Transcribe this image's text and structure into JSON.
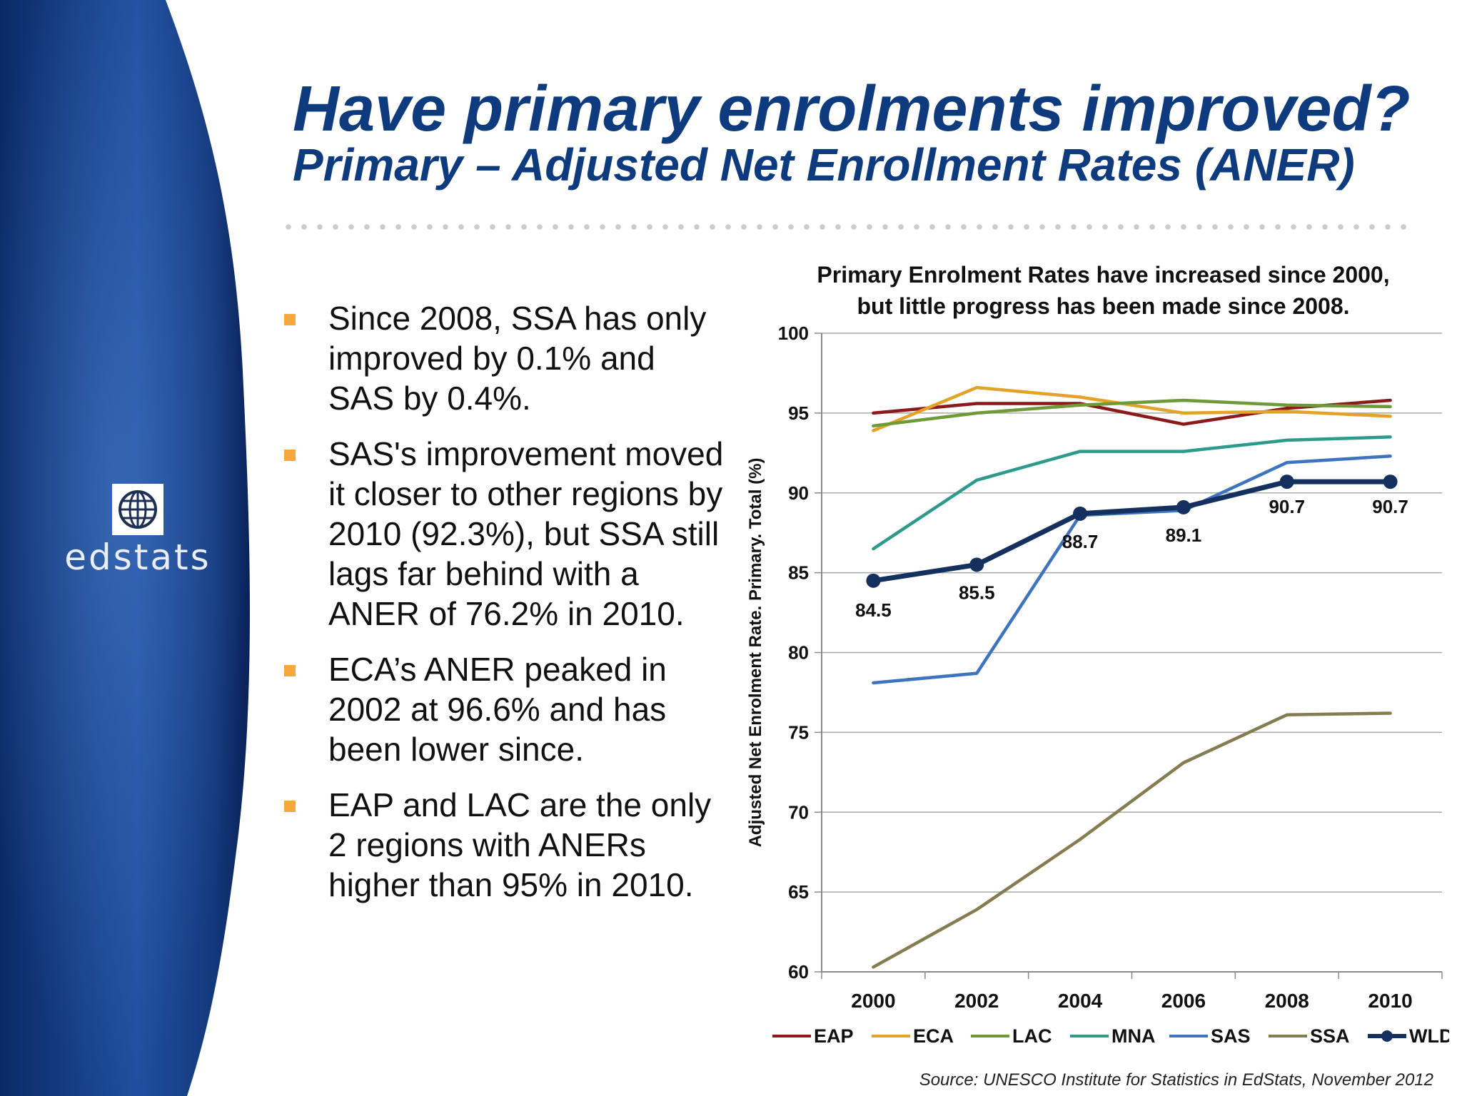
{
  "slide": {
    "title": "Have primary enrolments improved?",
    "subtitle": "Primary – Adjusted Net Enrollment Rates (ANER)",
    "logo_text": "edstats",
    "logo_icon": "globe-icon",
    "bullets": [
      "Since 2008, SSA has only improved by 0.1% and SAS by 0.4%.",
      "SAS's improvement moved it closer to other regions by 2010 (92.3%), but SSA still lags far behind with a ANER of 76.2% in 2010.",
      "ECA’s ANER peaked in 2002 at 96.6% and has been lower since.",
      "EAP and LAC are the only 2 regions with ANERs higher than 95% in 2010."
    ],
    "source": "Source: UNESCO Institute for Statistics in EdStats, November 2012",
    "colors": {
      "title": "#0e3a7e",
      "bullet_marker": "#f6a93b",
      "sidebar_dark": "#0b2a66",
      "sidebar_mid": "#1f4f9e"
    }
  },
  "chart_data": {
    "type": "line",
    "title": "Primary Enrolment Rates have increased since 2000, but little progress has been made since 2008.",
    "xlabel": "",
    "ylabel": "Adjusted Net Enrolment Rate. Primary. Total (%)",
    "x": [
      "2000",
      "2002",
      "2004",
      "2006",
      "2008",
      "2010"
    ],
    "ylim": [
      60,
      100
    ],
    "yticks": [
      "60",
      "65",
      "70",
      "75",
      "80",
      "85",
      "90",
      "95",
      "100"
    ],
    "grid": true,
    "legend_position": "bottom",
    "series": [
      {
        "name": "EAP",
        "color": "#8b1a1a",
        "values": [
          95.0,
          95.6,
          95.6,
          94.3,
          95.3,
          95.8
        ]
      },
      {
        "name": "ECA",
        "color": "#e3a32a",
        "values": [
          93.9,
          96.6,
          96.0,
          95.0,
          95.1,
          94.8
        ]
      },
      {
        "name": "LAC",
        "color": "#6e9a3a",
        "values": [
          94.2,
          95.0,
          95.5,
          95.8,
          95.5,
          95.4
        ]
      },
      {
        "name": "MNA",
        "color": "#2e9a8c",
        "values": [
          86.5,
          90.8,
          92.6,
          92.6,
          93.3,
          93.5
        ]
      },
      {
        "name": "SAS",
        "color": "#3d74bd",
        "values": [
          78.1,
          78.7,
          88.6,
          88.9,
          91.9,
          92.3
        ]
      },
      {
        "name": "SSA",
        "color": "#857d52",
        "values": [
          60.3,
          63.9,
          68.3,
          73.1,
          76.1,
          76.2
        ]
      },
      {
        "name": "WLD",
        "color": "#14305e",
        "values": [
          84.5,
          85.5,
          88.7,
          89.1,
          90.7,
          90.7
        ],
        "markers": true,
        "data_labels": [
          "84.5",
          "85.5",
          "88.7",
          "89.1",
          "90.7",
          "90.7"
        ]
      }
    ]
  }
}
